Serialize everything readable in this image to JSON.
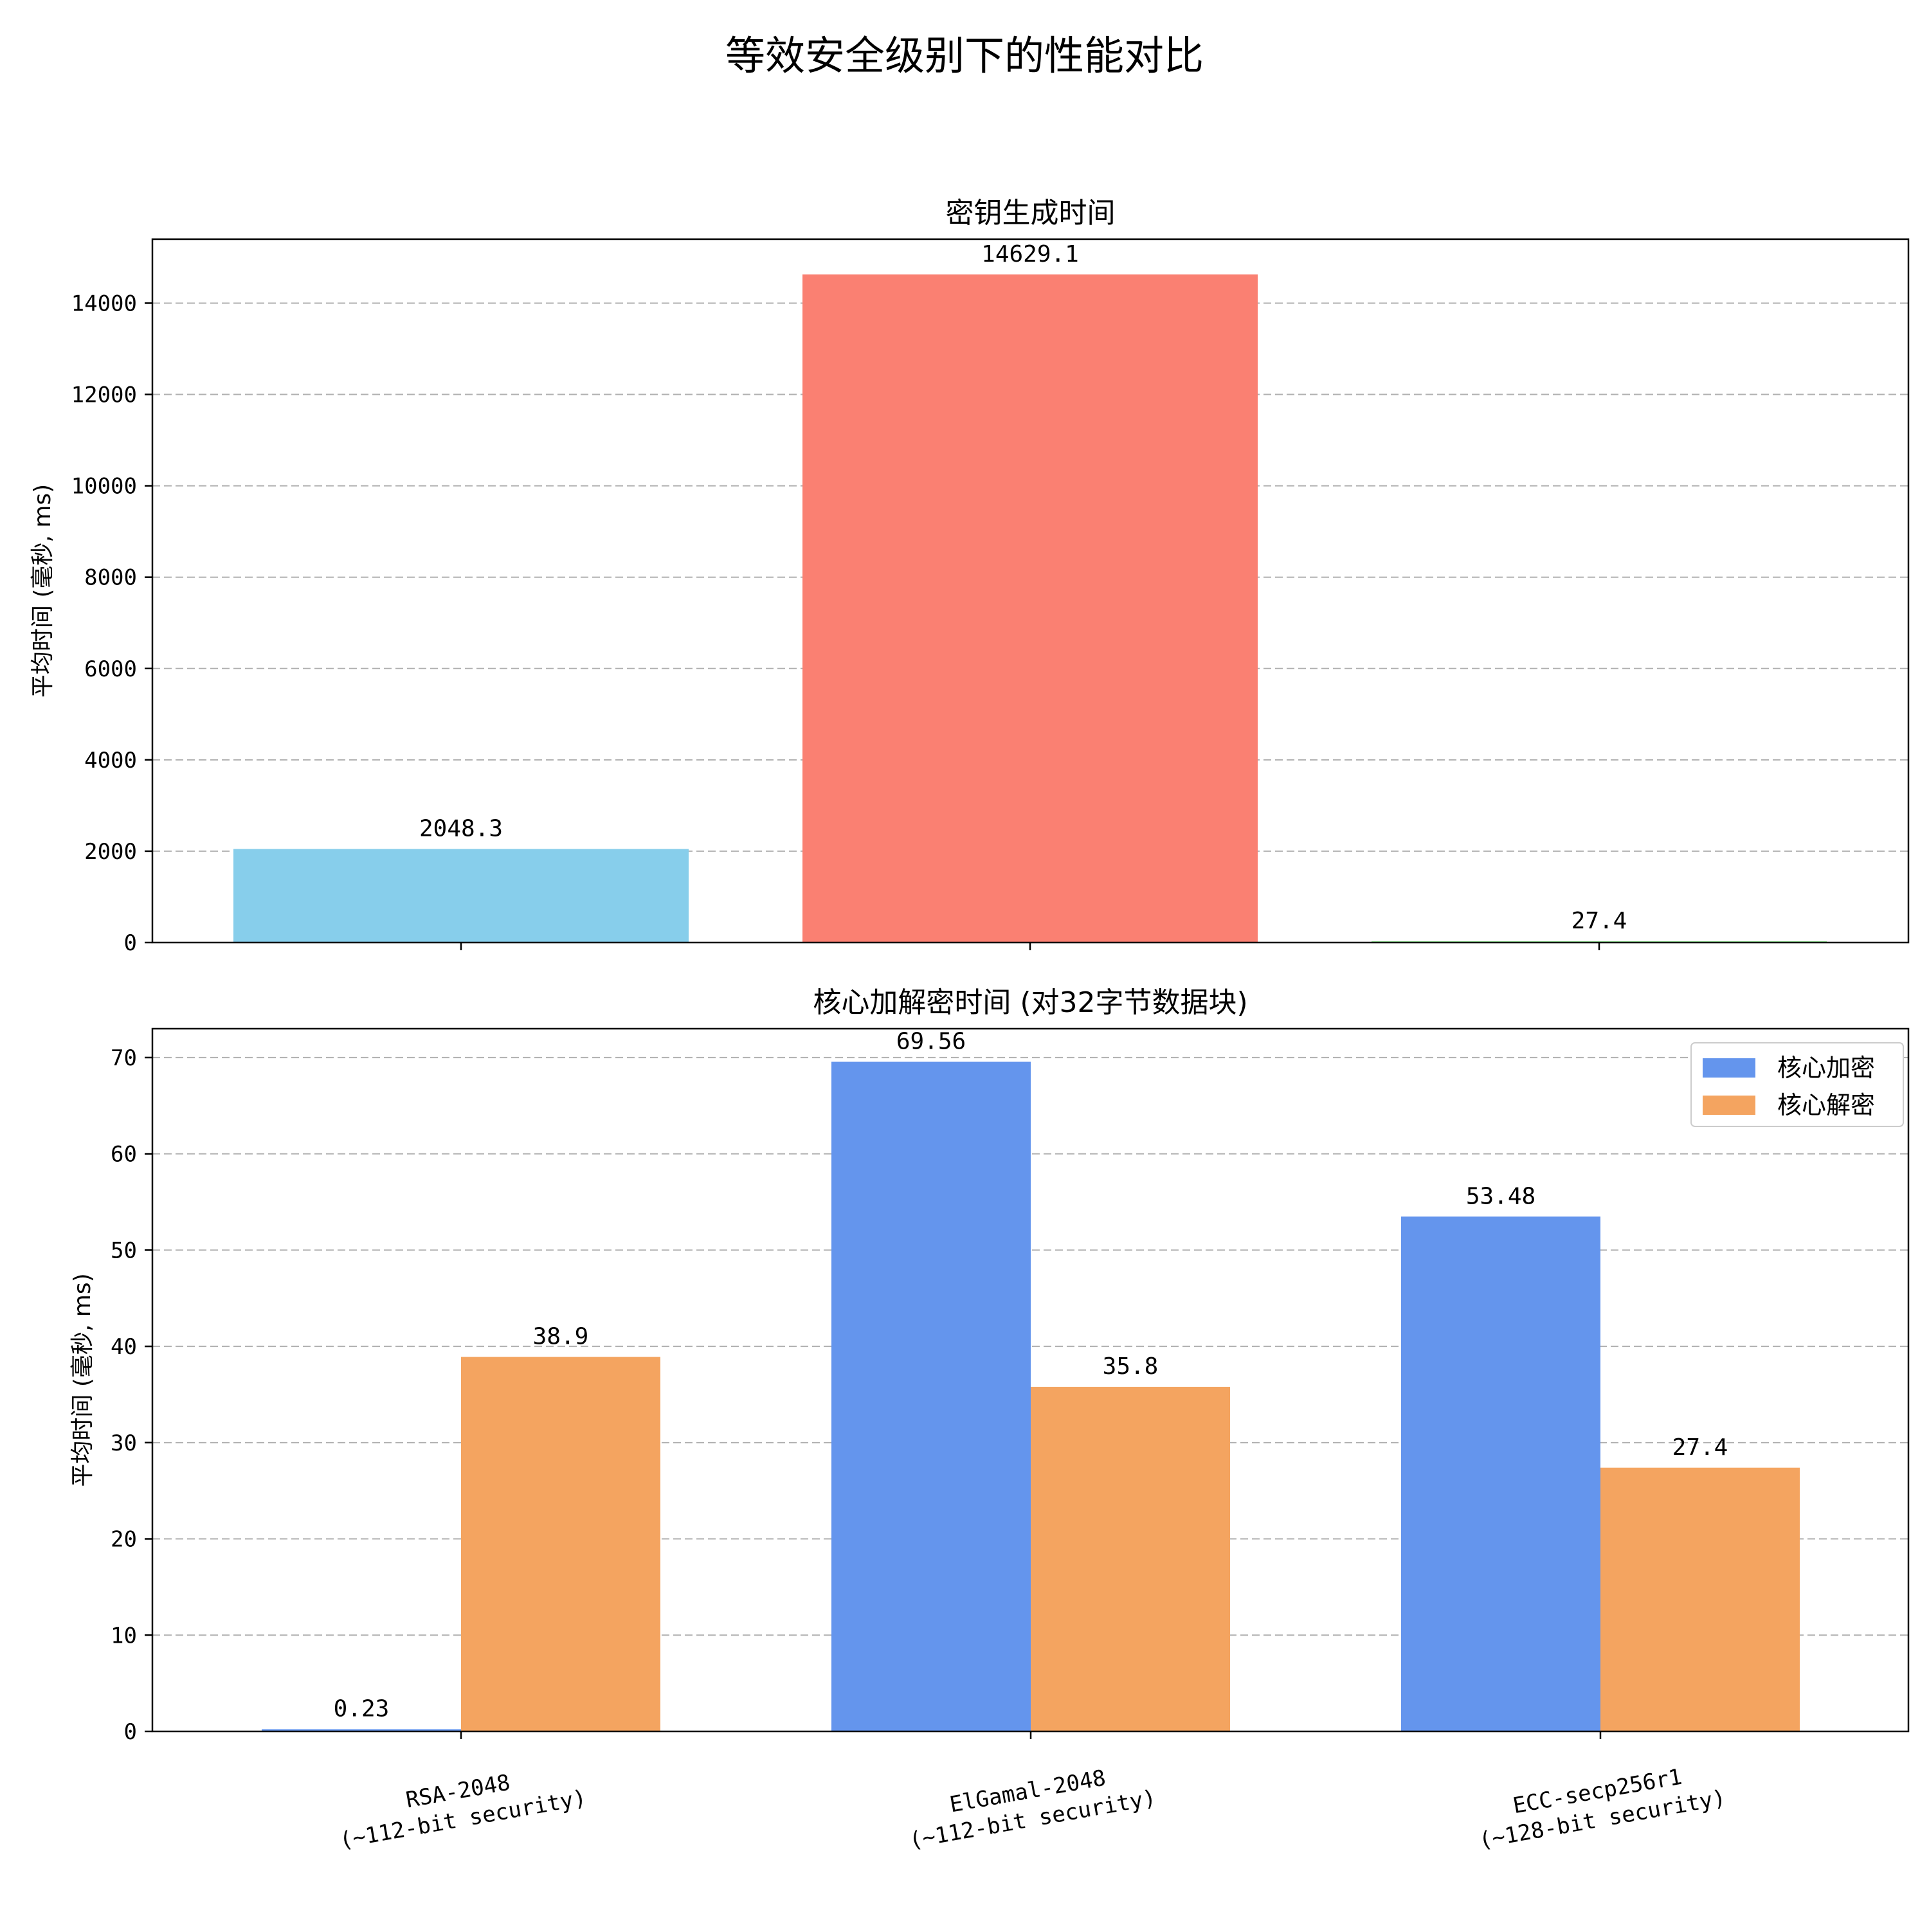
{
  "figure": {
    "suptitle": "等效安全级别下的性能对比"
  },
  "chart_data": [
    {
      "type": "bar",
      "title": "密钥生成时间",
      "ylabel": "平均时间 (毫秒, ms)",
      "xlabel": "",
      "ylim": [
        0,
        15400
      ],
      "yticks": [
        0,
        2000,
        4000,
        6000,
        8000,
        10000,
        12000,
        14000
      ],
      "grid": "y-dashed",
      "categories": [
        "RSA-2048\n(~112-bit security)",
        "ElGamal-2048\n(~112-bit security)",
        "ECC-secp256r1\n(~128-bit security)"
      ],
      "values": [
        2048.3,
        14629.1,
        27.4
      ],
      "data_labels": [
        "2048.3",
        "14629.1",
        "27.4"
      ],
      "colors": [
        "#87ceeb",
        "#fa8072",
        "#90ee90"
      ]
    },
    {
      "type": "bar",
      "title": "核心加解密时间 (对32字节数据块)",
      "ylabel": "平均时间 (毫秒, ms)",
      "xlabel": "",
      "ylim": [
        0,
        73
      ],
      "yticks": [
        0,
        10,
        20,
        30,
        40,
        50,
        60,
        70
      ],
      "grid": "y-dashed",
      "legend_position": "top-right",
      "categories": [
        "RSA-2048\n(~112-bit security)",
        "ElGamal-2048\n(~112-bit security)",
        "ECC-secp256r1\n(~128-bit security)"
      ],
      "series": [
        {
          "name": "核心加密",
          "values": [
            0.23,
            69.56,
            53.48
          ],
          "data_labels": [
            "0.23",
            "69.56",
            "53.48"
          ],
          "color": "#6495ed"
        },
        {
          "name": "核心解密",
          "values": [
            38.9,
            35.8,
            27.4
          ],
          "data_labels": [
            "38.9",
            "35.8",
            "27.4"
          ],
          "color": "#f4a460"
        }
      ]
    }
  ]
}
